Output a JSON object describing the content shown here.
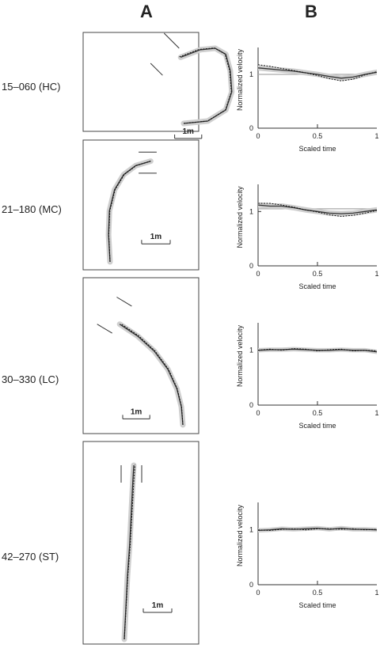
{
  "columns": [
    "A",
    "B"
  ],
  "colors": {
    "band": "#cfcfcf",
    "line": "#333333",
    "reference": "#aaaaaa"
  },
  "panels": [
    {
      "label": "15–060 (HC)",
      "scale_label": "1m",
      "path_side": "left",
      "path": [
        [
          0,
          0
        ],
        [
          0.8,
          0.08
        ],
        [
          1.4,
          0.45
        ],
        [
          1.6,
          1.05
        ],
        [
          1.55,
          1.75
        ],
        [
          1.4,
          2.3
        ],
        [
          1.05,
          2.5
        ],
        [
          0.55,
          2.45
        ],
        [
          -0.1,
          2.2
        ]
      ],
      "obstacles": [
        [
          [
            -0.15,
            2.5
          ],
          [
            -0.65,
            3.0
          ]
        ],
        [
          [
            -0.7,
            1.6
          ],
          [
            -1.1,
            2.0
          ]
        ]
      ],
      "scale_bar": [
        [
          -0.3,
          -0.5
        ],
        [
          0.6,
          -0.5
        ]
      ]
    },
    {
      "label": "21–180 (MC)",
      "scale_label": "1m",
      "path_side": "right",
      "path": [
        [
          0,
          0
        ],
        [
          -0.05,
          0.9
        ],
        [
          -0.02,
          1.7
        ],
        [
          0.15,
          2.4
        ],
        [
          0.45,
          2.9
        ],
        [
          0.85,
          3.2
        ],
        [
          1.35,
          3.35
        ]
      ],
      "obstacles": [
        [
          [
            0.95,
            3.65
          ],
          [
            1.55,
            3.65
          ]
        ],
        [
          [
            0.95,
            2.95
          ],
          [
            1.55,
            2.95
          ]
        ]
      ],
      "scale_bar": [
        [
          1.05,
          0.6
        ],
        [
          2.0,
          0.6
        ]
      ]
    },
    {
      "label": "30–330 (LC)",
      "scale_label": "1m",
      "path_side": "right",
      "path": [
        [
          0,
          0
        ],
        [
          -0.05,
          0.6
        ],
        [
          -0.2,
          1.2
        ],
        [
          -0.5,
          1.85
        ],
        [
          -0.95,
          2.45
        ],
        [
          -1.5,
          2.95
        ],
        [
          -2.1,
          3.35
        ]
      ],
      "obstacles": [
        [
          [
            -1.7,
            3.95
          ],
          [
            -2.2,
            4.25
          ]
        ],
        [
          [
            -2.35,
            3.05
          ],
          [
            -2.85,
            3.35
          ]
        ]
      ],
      "scale_bar": [
        [
          -2.0,
          0.2
        ],
        [
          -1.1,
          0.2
        ]
      ]
    },
    {
      "label": "42–270 (ST)",
      "scale_label": "1m",
      "path_side": "right",
      "path": [
        [
          0,
          0
        ],
        [
          0.05,
          1.0
        ],
        [
          0.1,
          2.0
        ],
        [
          0.17,
          3.0
        ],
        [
          0.22,
          4.0
        ],
        [
          0.27,
          5.0
        ],
        [
          0.3,
          5.5
        ]
      ],
      "obstacles": [
        [
          [
            -0.1,
            5.5
          ],
          [
            -0.1,
            4.95
          ]
        ],
        [
          [
            0.55,
            5.5
          ],
          [
            0.55,
            4.95
          ]
        ]
      ],
      "scale_bar": [
        [
          0.6,
          0.85
        ],
        [
          1.5,
          0.85
        ]
      ]
    }
  ],
  "chart_data": [
    {
      "type": "line",
      "panel": "15–060 (HC)",
      "xlabel": "Scaled time",
      "ylabel": "Normalized velocity",
      "xlim": [
        0,
        1
      ],
      "ylim": [
        0,
        1.5
      ],
      "xticks": [
        "0",
        "0.5",
        "1"
      ],
      "yticks": [
        "0",
        "1"
      ],
      "reference_y": 1,
      "x": [
        0,
        0.1,
        0.2,
        0.3,
        0.4,
        0.5,
        0.6,
        0.7,
        0.8,
        0.9,
        1.0
      ],
      "series": [
        {
          "style": "solid",
          "values": [
            1.12,
            1.1,
            1.08,
            1.06,
            1.03,
            1.0,
            0.96,
            0.93,
            0.95,
            1.0,
            1.04
          ]
        },
        {
          "style": "dashed",
          "values": [
            1.18,
            1.15,
            1.11,
            1.07,
            1.03,
            0.98,
            0.92,
            0.88,
            0.91,
            0.99,
            1.05
          ]
        }
      ],
      "band_halfwidth": 0.05
    },
    {
      "type": "line",
      "panel": "21–180 (MC)",
      "xlabel": "Scaled time",
      "ylabel": "Normalized velocity",
      "xlim": [
        0,
        1
      ],
      "ylim": [
        0,
        1.5
      ],
      "xticks": [
        "0",
        "0.5",
        "1"
      ],
      "yticks": [
        "0",
        "1"
      ],
      "reference_y": 1.05,
      "x": [
        0,
        0.1,
        0.2,
        0.3,
        0.4,
        0.5,
        0.6,
        0.7,
        0.8,
        0.9,
        1.0
      ],
      "series": [
        {
          "style": "solid",
          "values": [
            1.12,
            1.1,
            1.1,
            1.07,
            1.03,
            1.0,
            0.97,
            0.96,
            0.97,
            1.0,
            1.03
          ]
        },
        {
          "style": "dashed",
          "values": [
            1.15,
            1.15,
            1.12,
            1.08,
            1.03,
            0.99,
            0.94,
            0.91,
            0.93,
            0.97,
            1.02
          ]
        }
      ],
      "band_halfwidth": 0.05
    },
    {
      "type": "line",
      "panel": "30–330 (LC)",
      "xlabel": "Scaled time",
      "ylabel": "Normalized velocity",
      "xlim": [
        0,
        1
      ],
      "ylim": [
        0,
        1.5
      ],
      "xticks": [
        "0",
        "0.5",
        "1"
      ],
      "yticks": [
        "0",
        "1"
      ],
      "reference_y": 1,
      "x": [
        0,
        0.1,
        0.2,
        0.3,
        0.4,
        0.5,
        0.6,
        0.7,
        0.8,
        0.9,
        1.0
      ],
      "series": [
        {
          "style": "solid",
          "values": [
            1.0,
            1.01,
            1.01,
            1.02,
            1.01,
            1.0,
            1.0,
            1.01,
            1.0,
            1.0,
            0.97
          ]
        },
        {
          "style": "dashed",
          "values": [
            1.0,
            1.02,
            1.0,
            1.03,
            1.02,
            0.99,
            1.01,
            1.02,
            0.99,
            1.0,
            0.99
          ]
        }
      ],
      "band_halfwidth": 0.04
    },
    {
      "type": "line",
      "panel": "42–270 (ST)",
      "xlabel": "Scaled time",
      "ylabel": "Normalized velocity",
      "xlim": [
        0,
        1
      ],
      "ylim": [
        0,
        1.5
      ],
      "xticks": [
        "0",
        "0.5",
        "1"
      ],
      "yticks": [
        "0",
        "1"
      ],
      "reference_y": 1,
      "x": [
        0,
        0.1,
        0.2,
        0.3,
        0.4,
        0.5,
        0.6,
        0.7,
        0.8,
        0.9,
        1.0
      ],
      "series": [
        {
          "style": "solid",
          "values": [
            0.99,
            1.0,
            1.02,
            1.01,
            1.02,
            1.03,
            1.01,
            1.03,
            1.01,
            1.01,
            1.0
          ]
        },
        {
          "style": "dashed",
          "values": [
            1.0,
            0.99,
            1.01,
            1.02,
            1.0,
            1.02,
            1.02,
            1.01,
            1.02,
            1.0,
            1.01
          ]
        }
      ],
      "band_halfwidth": 0.04
    }
  ]
}
